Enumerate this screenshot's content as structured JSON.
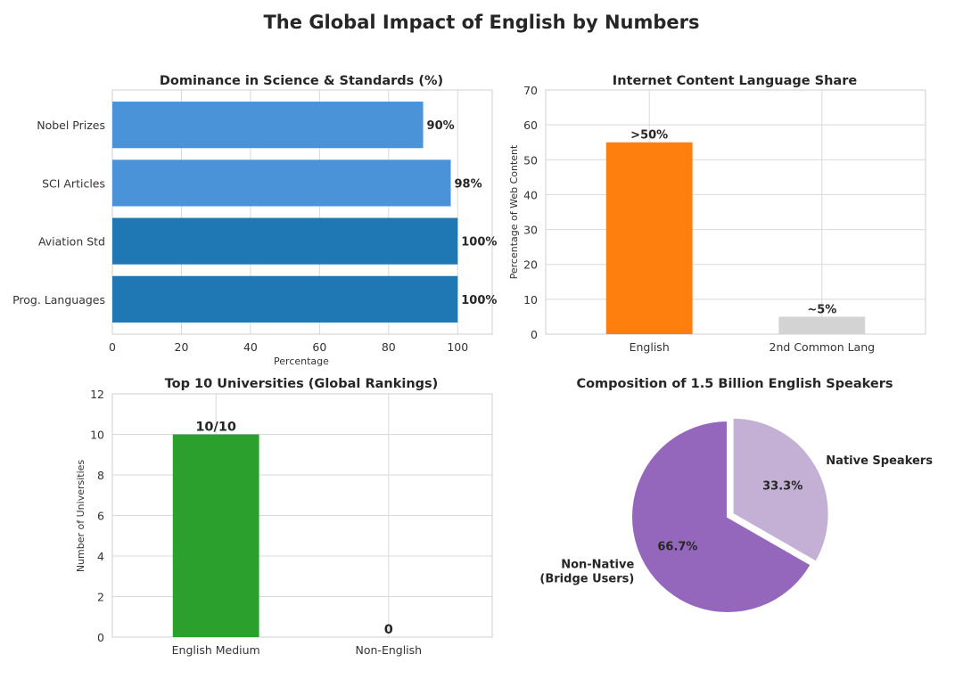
{
  "figure": {
    "title": "The Global Impact of English by Numbers"
  },
  "chart_data": [
    {
      "id": "science",
      "type": "bar",
      "orientation": "horizontal",
      "title": "Dominance in Science & Standards (%)",
      "xlabel": "Percentage",
      "ylabel": "",
      "xlim": [
        0,
        110
      ],
      "xticks": [
        0,
        20,
        40,
        60,
        80,
        100
      ],
      "categories": [
        "Prog. Languages",
        "Aviation Std",
        "SCI Articles",
        "Nobel Prizes"
      ],
      "values": [
        100,
        100,
        98,
        90
      ],
      "value_labels": [
        "100%",
        "100%",
        "98%",
        "90%"
      ],
      "colors": [
        "#1f77b4",
        "#1f77b4",
        "#4a93d9",
        "#4a93d9"
      ],
      "grid": true
    },
    {
      "id": "internet",
      "type": "bar",
      "orientation": "vertical",
      "title": "Internet Content Language Share",
      "xlabel": "",
      "ylabel": "Percentage of Web Content",
      "ylim": [
        0,
        70
      ],
      "yticks": [
        0,
        10,
        20,
        30,
        40,
        50,
        60,
        70
      ],
      "categories": [
        "English",
        "2nd Common Lang"
      ],
      "values": [
        55,
        5
      ],
      "value_labels": [
        ">50%",
        "~5%"
      ],
      "colors": [
        "#ff7f0e",
        "#d3d3d3"
      ],
      "grid": true
    },
    {
      "id": "universities",
      "type": "bar",
      "orientation": "vertical",
      "title": "Top 10 Universities (Global Rankings)",
      "xlabel": "",
      "ylabel": "Number of Universities",
      "ylim": [
        0,
        12
      ],
      "yticks": [
        0,
        2,
        4,
        6,
        8,
        10,
        12
      ],
      "categories": [
        "English Medium",
        "Non-English"
      ],
      "values": [
        10,
        0
      ],
      "value_labels": [
        "10/10",
        "0"
      ],
      "colors": [
        "#2ca02c",
        "#d62728"
      ],
      "grid": true
    },
    {
      "id": "speakers",
      "type": "pie",
      "title": "Composition of 1.5 Billion English Speakers",
      "labels": [
        "Native Speakers",
        "Non-Native\n(Bridge Users)"
      ],
      "values": [
        33.3,
        66.7
      ],
      "pct_labels": [
        "33.3%",
        "66.7%"
      ],
      "colors": [
        "#c5b0d5",
        "#9467bd"
      ],
      "explode": [
        0.06,
        0
      ]
    }
  ]
}
